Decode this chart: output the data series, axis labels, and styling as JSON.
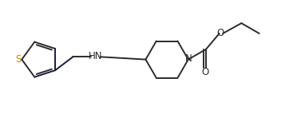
{
  "bg_color": "#ffffff",
  "line_color": "#2b2b2b",
  "dark_line_color": "#1a1a3a",
  "S_color": "#b8860b",
  "label_fontsize": 8.5,
  "line_width": 1.4,
  "figsize": [
    3.72,
    1.43
  ],
  "dpi": 100,
  "xlim": [
    0.0,
    8.2
  ],
  "ylim": [
    0.5,
    3.2
  ]
}
